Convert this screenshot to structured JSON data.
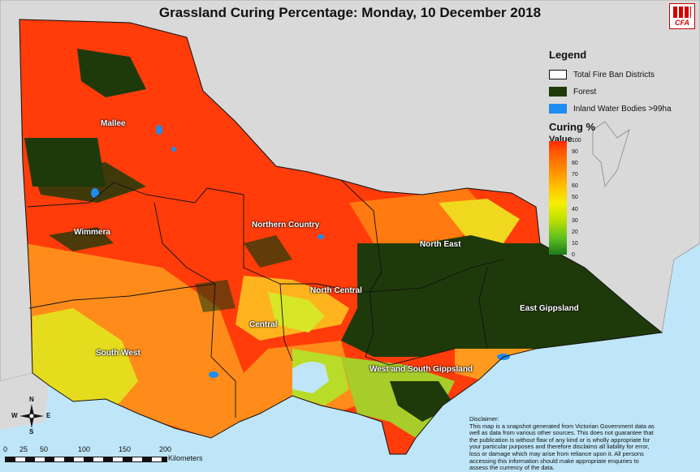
{
  "title": "Grassland Curing Percentage: Monday, 10 December 2018",
  "logo": {
    "text": "CFA"
  },
  "legend": {
    "heading": "Legend",
    "items": [
      {
        "label": "Total Fire Ban Districts",
        "color": "#ffffff"
      },
      {
        "label": "Forest",
        "color": "#1f3a0a"
      },
      {
        "label": "Inland Water Bodies >99ha",
        "color": "#1e8cf0"
      }
    ],
    "curing_title": "Curing %",
    "value_label": "Value",
    "ramp_ticks": [
      "100",
      "90",
      "80",
      "70",
      "60",
      "50",
      "40",
      "30",
      "20",
      "10",
      "0"
    ]
  },
  "districts": [
    {
      "name": "Mallee"
    },
    {
      "name": "Wimmera"
    },
    {
      "name": "Northern Country"
    },
    {
      "name": "North East"
    },
    {
      "name": "North Central"
    },
    {
      "name": "Central"
    },
    {
      "name": "South West"
    },
    {
      "name": "East Gippsland"
    },
    {
      "name": "West and South Gippsland"
    }
  ],
  "scale": {
    "labels": [
      "0",
      "25",
      "50",
      "100",
      "150",
      "200"
    ],
    "unit": "Kilometers"
  },
  "compass": {
    "n": "N",
    "s": "S",
    "e": "E",
    "w": "W"
  },
  "disclaimer": {
    "heading": "Disclaimer:",
    "body": "This map is a snapshot generated from Victorian Government data as well as data from various other sources. This does not guarantee that the publication is without flaw of any kind or is wholly appropriate for your particular purposes and therefore disclaims all liability for error, loss or damage which may arise from reliance upon it. All persons accessing this information should make appropriate enquiries to assess the currency of the data."
  },
  "colors": {
    "sea": "#bfe6f8",
    "land_outside": "#d9d9d9",
    "forest": "#1f3a0a",
    "water": "#1e8cf0",
    "curing_high": "#ff2a00",
    "curing_mid": "#ffc000",
    "curing_low": "#7ec21e"
  }
}
